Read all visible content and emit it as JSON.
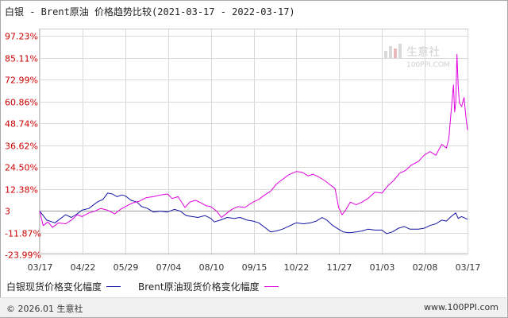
{
  "title": "白银 - Brent原油 价格趋势比较(2021-03-17 - 2022-03-17)",
  "watermark": {
    "name": "生意社",
    "url": "100PPI.COM",
    "icon": "bar-chart-logo-icon"
  },
  "footer": {
    "copyright": "© 2026.01 生意社",
    "site": "www.100PPI.com"
  },
  "colors": {
    "silver": "#1515a5",
    "brent": "#e000e0",
    "ytick": "#cc0000",
    "grid": "#d9d9d9"
  },
  "chart_data": {
    "type": "line",
    "title": "白银 - Brent原油 价格趋势比较(2021-03-17 - 2022-03-17)",
    "xlabel": "",
    "ylabel": "",
    "x_ticks": [
      "03/17",
      "04/22",
      "05/29",
      "07/04",
      "08/10",
      "09/15",
      "10/22",
      "11/27",
      "01/03",
      "02/08",
      "03/17"
    ],
    "y_ticks": [
      "97.23%",
      "85.11%",
      "72.99%",
      "60.86%",
      "48.74%",
      "36.62%",
      "24.50%",
      "12.38%",
      "3",
      "-11.87%",
      "-23.99%"
    ],
    "ylim": [
      -23.99,
      97.23
    ],
    "x_range": [
      "2021-03-17",
      "2022-03-17"
    ],
    "grid": true,
    "legend": "bottom",
    "series": [
      {
        "name": "白银现货价格变化幅度",
        "points": [
          [
            "2021-03-17",
            0.0
          ],
          [
            "2021-03-23",
            -5.0
          ],
          [
            "2021-03-30",
            -6.5
          ],
          [
            "2021-04-03",
            -4.5
          ],
          [
            "2021-04-08",
            -2.0
          ],
          [
            "2021-04-13",
            -3.5
          ],
          [
            "2021-04-18",
            -1.5
          ],
          [
            "2021-04-22",
            0.5
          ],
          [
            "2021-04-28",
            1.5
          ],
          [
            "2021-05-05",
            5.0
          ],
          [
            "2021-05-10",
            6.5
          ],
          [
            "2021-05-14",
            10.0
          ],
          [
            "2021-05-18",
            9.5
          ],
          [
            "2021-05-22",
            8.0
          ],
          [
            "2021-05-26",
            9.0
          ],
          [
            "2021-05-29",
            8.5
          ],
          [
            "2021-06-03",
            6.0
          ],
          [
            "2021-06-08",
            5.0
          ],
          [
            "2021-06-12",
            2.5
          ],
          [
            "2021-06-17",
            1.5
          ],
          [
            "2021-06-22",
            -0.5
          ],
          [
            "2021-06-28",
            0.0
          ],
          [
            "2021-07-04",
            -0.5
          ],
          [
            "2021-07-10",
            1.0
          ],
          [
            "2021-07-15",
            0.0
          ],
          [
            "2021-07-20",
            -2.5
          ],
          [
            "2021-07-25",
            -3.0
          ],
          [
            "2021-07-30",
            -3.5
          ],
          [
            "2021-08-05",
            -2.5
          ],
          [
            "2021-08-10",
            -4.0
          ],
          [
            "2021-08-13",
            -6.0
          ],
          [
            "2021-08-18",
            -5.0
          ],
          [
            "2021-08-24",
            -3.5
          ],
          [
            "2021-08-30",
            -4.0
          ],
          [
            "2021-09-04",
            -3.5
          ],
          [
            "2021-09-10",
            -5.0
          ],
          [
            "2021-09-15",
            -5.5
          ],
          [
            "2021-09-20",
            -6.5
          ],
          [
            "2021-09-25",
            -9.0
          ],
          [
            "2021-09-30",
            -11.5
          ],
          [
            "2021-10-05",
            -11.0
          ],
          [
            "2021-10-10",
            -10.0
          ],
          [
            "2021-10-15",
            -8.5
          ],
          [
            "2021-10-20",
            -7.0
          ],
          [
            "2021-10-22",
            -6.5
          ],
          [
            "2021-10-28",
            -7.0
          ],
          [
            "2021-11-03",
            -6.5
          ],
          [
            "2021-11-08",
            -5.5
          ],
          [
            "2021-11-13",
            -3.5
          ],
          [
            "2021-11-17",
            -5.0
          ],
          [
            "2021-11-22",
            -8.0
          ],
          [
            "2021-11-27",
            -10.0
          ],
          [
            "2021-12-01",
            -11.5
          ],
          [
            "2021-12-06",
            -12.0
          ],
          [
            "2021-12-12",
            -11.5
          ],
          [
            "2021-12-17",
            -11.0
          ],
          [
            "2021-12-22",
            -10.0
          ],
          [
            "2021-12-28",
            -10.5
          ],
          [
            "2022-01-03",
            -10.5
          ],
          [
            "2022-01-07",
            -12.5
          ],
          [
            "2022-01-12",
            -11.5
          ],
          [
            "2022-01-17",
            -9.5
          ],
          [
            "2022-01-22",
            -8.5
          ],
          [
            "2022-01-27",
            -10.0
          ],
          [
            "2022-02-03",
            -10.0
          ],
          [
            "2022-02-08",
            -9.5
          ],
          [
            "2022-02-13",
            -8.0
          ],
          [
            "2022-02-18",
            -7.0
          ],
          [
            "2022-02-23",
            -5.0
          ],
          [
            "2022-02-27",
            -5.5
          ],
          [
            "2022-03-03",
            -3.0
          ],
          [
            "2022-03-07",
            -1.0
          ],
          [
            "2022-03-09",
            -4.0
          ],
          [
            "2022-03-12",
            -3.0
          ],
          [
            "2022-03-17",
            -4.5
          ]
        ]
      },
      {
        "name": "Brent原油现货价格变化幅度",
        "points": [
          [
            "2021-03-17",
            0.0
          ],
          [
            "2021-03-20",
            -8.0
          ],
          [
            "2021-03-24",
            -6.0
          ],
          [
            "2021-03-28",
            -9.0
          ],
          [
            "2021-04-02",
            -6.5
          ],
          [
            "2021-04-08",
            -7.0
          ],
          [
            "2021-04-13",
            -5.0
          ],
          [
            "2021-04-18",
            -2.0
          ],
          [
            "2021-04-22",
            -3.0
          ],
          [
            "2021-04-28",
            -1.0
          ],
          [
            "2021-05-03",
            0.0
          ],
          [
            "2021-05-08",
            1.5
          ],
          [
            "2021-05-14",
            0.5
          ],
          [
            "2021-05-20",
            -1.5
          ],
          [
            "2021-05-25",
            1.0
          ],
          [
            "2021-05-29",
            2.5
          ],
          [
            "2021-06-04",
            4.5
          ],
          [
            "2021-06-10",
            5.5
          ],
          [
            "2021-06-16",
            7.5
          ],
          [
            "2021-06-22",
            8.0
          ],
          [
            "2021-06-28",
            9.0
          ],
          [
            "2021-07-04",
            9.5
          ],
          [
            "2021-07-08",
            7.0
          ],
          [
            "2021-07-13",
            8.0
          ],
          [
            "2021-07-19",
            2.0
          ],
          [
            "2021-07-23",
            5.0
          ],
          [
            "2021-07-28",
            6.0
          ],
          [
            "2021-08-02",
            4.5
          ],
          [
            "2021-08-06",
            3.0
          ],
          [
            "2021-08-10",
            2.5
          ],
          [
            "2021-08-15",
            0.0
          ],
          [
            "2021-08-19",
            -3.5
          ],
          [
            "2021-08-24",
            -1.0
          ],
          [
            "2021-08-28",
            1.0
          ],
          [
            "2021-09-02",
            2.5
          ],
          [
            "2021-09-08",
            2.0
          ],
          [
            "2021-09-15",
            5.0
          ],
          [
            "2021-09-20",
            6.5
          ],
          [
            "2021-09-25",
            9.0
          ],
          [
            "2021-09-30",
            11.0
          ],
          [
            "2021-10-05",
            15.0
          ],
          [
            "2021-10-10",
            17.5
          ],
          [
            "2021-10-15",
            20.0
          ],
          [
            "2021-10-22",
            22.0
          ],
          [
            "2021-10-27",
            21.5
          ],
          [
            "2021-11-01",
            19.5
          ],
          [
            "2021-11-05",
            20.5
          ],
          [
            "2021-11-10",
            19.0
          ],
          [
            "2021-11-15",
            17.0
          ],
          [
            "2021-11-19",
            15.0
          ],
          [
            "2021-11-24",
            12.5
          ],
          [
            "2021-11-27",
            2.0
          ],
          [
            "2021-11-30",
            -2.0
          ],
          [
            "2021-12-03",
            0.5
          ],
          [
            "2021-12-07",
            5.0
          ],
          [
            "2021-12-12",
            3.5
          ],
          [
            "2021-12-17",
            5.0
          ],
          [
            "2021-12-22",
            7.0
          ],
          [
            "2021-12-28",
            10.5
          ],
          [
            "2022-01-03",
            10.0
          ],
          [
            "2022-01-08",
            14.0
          ],
          [
            "2022-01-13",
            17.0
          ],
          [
            "2022-01-18",
            21.0
          ],
          [
            "2022-01-23",
            22.5
          ],
          [
            "2022-01-28",
            25.5
          ],
          [
            "2022-02-03",
            27.5
          ],
          [
            "2022-02-08",
            31.0
          ],
          [
            "2022-02-13",
            33.0
          ],
          [
            "2022-02-18",
            31.0
          ],
          [
            "2022-02-23",
            37.0
          ],
          [
            "2022-02-27",
            35.0
          ],
          [
            "2022-03-01",
            40.0
          ],
          [
            "2022-03-03",
            55.0
          ],
          [
            "2022-03-05",
            70.0
          ],
          [
            "2022-03-06",
            55.0
          ],
          [
            "2022-03-07",
            60.0
          ],
          [
            "2022-03-08",
            87.0
          ],
          [
            "2022-03-09",
            70.0
          ],
          [
            "2022-03-10",
            60.0
          ],
          [
            "2022-03-12",
            58.0
          ],
          [
            "2022-03-14",
            63.0
          ],
          [
            "2022-03-16",
            50.0
          ],
          [
            "2022-03-17",
            45.0
          ]
        ]
      }
    ]
  }
}
